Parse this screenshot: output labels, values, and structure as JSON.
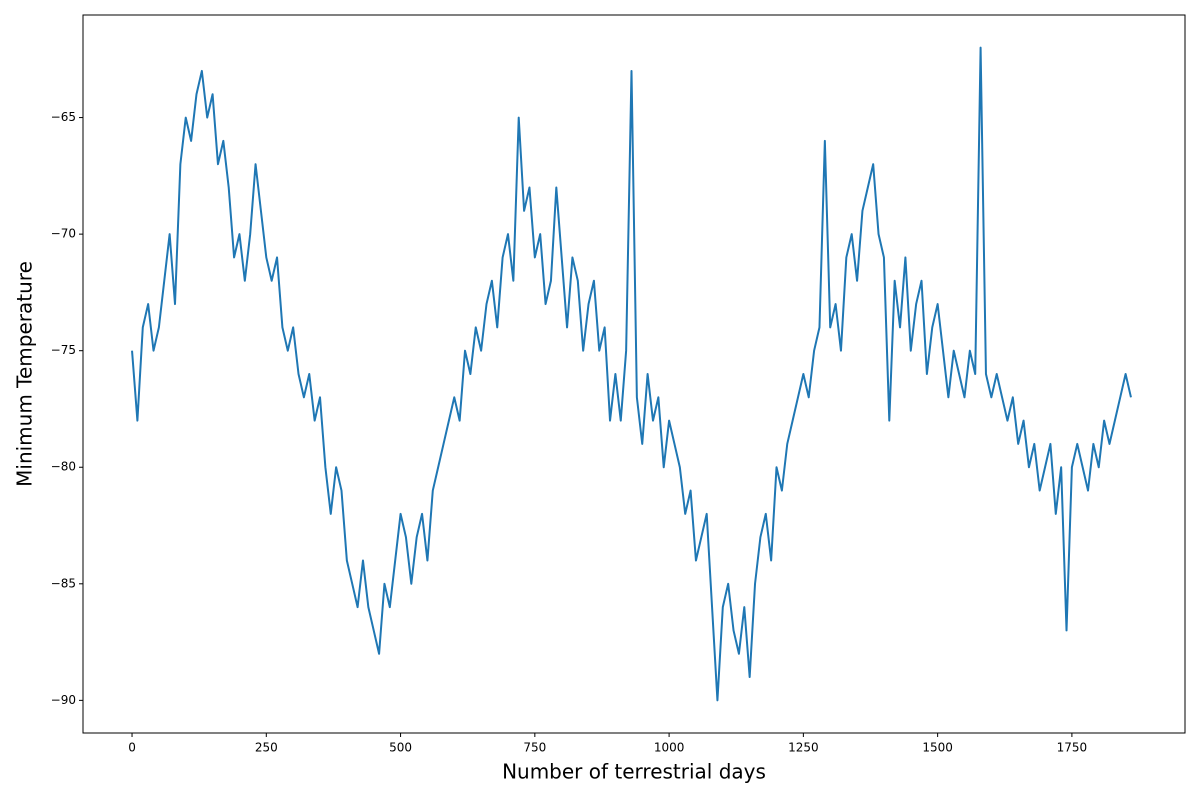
{
  "chart_data": {
    "type": "line",
    "xlabel": "Number of terrestrial days",
    "ylabel": "Minimum Temperature",
    "color": "#1f77b4",
    "xlim": [
      -91.3,
      1960.6
    ],
    "ylim": [
      -91.4,
      -60.6
    ],
    "xticks": [
      0,
      250,
      500,
      750,
      1000,
      1250,
      1500,
      1750
    ],
    "yticks": [
      {
        "value": -65,
        "label": "−65"
      },
      {
        "value": -70,
        "label": "−70"
      },
      {
        "value": -75,
        "label": "−75"
      },
      {
        "value": -80,
        "label": "−80"
      },
      {
        "value": -85,
        "label": "−85"
      },
      {
        "value": -90,
        "label": "−90"
      }
    ],
    "grid": false,
    "x": [
      0,
      10,
      20,
      30,
      40,
      50,
      60,
      70,
      80,
      90,
      100,
      110,
      120,
      130,
      140,
      150,
      160,
      170,
      180,
      190,
      200,
      210,
      220,
      230,
      240,
      250,
      260,
      270,
      280,
      290,
      300,
      310,
      320,
      330,
      340,
      350,
      360,
      370,
      380,
      390,
      400,
      410,
      420,
      430,
      440,
      450,
      460,
      470,
      480,
      490,
      500,
      510,
      520,
      530,
      540,
      550,
      560,
      570,
      580,
      590,
      600,
      610,
      620,
      630,
      640,
      650,
      660,
      670,
      680,
      690,
      700,
      710,
      720,
      730,
      740,
      750,
      760,
      770,
      780,
      790,
      800,
      810,
      820,
      830,
      840,
      850,
      860,
      870,
      880,
      890,
      900,
      910,
      920,
      930,
      940,
      950,
      960,
      970,
      980,
      990,
      1000,
      1010,
      1020,
      1030,
      1040,
      1050,
      1060,
      1070,
      1080,
      1090,
      1100,
      1110,
      1120,
      1130,
      1140,
      1150,
      1160,
      1170,
      1180,
      1190,
      1200,
      1210,
      1220,
      1230,
      1240,
      1250,
      1260,
      1270,
      1280,
      1290,
      1300,
      1310,
      1320,
      1330,
      1340,
      1350,
      1360,
      1370,
      1380,
      1390,
      1400,
      1410,
      1420,
      1430,
      1440,
      1450,
      1460,
      1470,
      1480,
      1490,
      1500,
      1510,
      1520,
      1530,
      1540,
      1550,
      1560,
      1570,
      1580,
      1590,
      1600,
      1610,
      1620,
      1630,
      1640,
      1650,
      1660,
      1670,
      1680,
      1690,
      1700,
      1710,
      1720,
      1730,
      1740,
      1750,
      1760,
      1770,
      1780,
      1790,
      1800,
      1810,
      1820,
      1830,
      1840,
      1850,
      1860
    ],
    "values": [
      -75,
      -78,
      -74,
      -73,
      -75,
      -74,
      -72,
      -70,
      -73,
      -67,
      -65,
      -66,
      -64,
      -63,
      -65,
      -64,
      -67,
      -66,
      -68,
      -71,
      -70,
      -72,
      -70,
      -67,
      -69,
      -71,
      -72,
      -71,
      -74,
      -75,
      -74,
      -76,
      -77,
      -76,
      -78,
      -77,
      -80,
      -82,
      -80,
      -81,
      -84,
      -85,
      -86,
      -84,
      -86,
      -87,
      -88,
      -85,
      -86,
      -84,
      -82,
      -83,
      -85,
      -83,
      -82,
      -84,
      -81,
      -80,
      -79,
      -78,
      -77,
      -78,
      -75,
      -76,
      -74,
      -75,
      -73,
      -72,
      -74,
      -71,
      -70,
      -72,
      -65,
      -69,
      -68,
      -71,
      -70,
      -73,
      -72,
      -68,
      -71,
      -74,
      -71,
      -72,
      -75,
      -73,
      -72,
      -75,
      -74,
      -78,
      -76,
      -78,
      -75,
      -63,
      -77,
      -79,
      -76,
      -78,
      -77,
      -80,
      -78,
      -79,
      -80,
      -82,
      -81,
      -84,
      -83,
      -82,
      -86,
      -90,
      -86,
      -85,
      -87,
      -88,
      -86,
      -89,
      -85,
      -83,
      -82,
      -84,
      -80,
      -81,
      -79,
      -78,
      -77,
      -76,
      -77,
      -75,
      -74,
      -66,
      -74,
      -73,
      -75,
      -71,
      -70,
      -72,
      -69,
      -68,
      -67,
      -70,
      -71,
      -78,
      -72,
      -74,
      -71,
      -75,
      -73,
      -72,
      -76,
      -74,
      -73,
      -75,
      -77,
      -75,
      -76,
      -77,
      -75,
      -76,
      -62,
      -76,
      -77,
      -76,
      -77,
      -78,
      -77,
      -79,
      -78,
      -80,
      -79,
      -81,
      -80,
      -79,
      -82,
      -80,
      -87,
      -80,
      -79,
      -80,
      -81,
      -79,
      -80,
      -78,
      -79,
      -78,
      -77,
      -76,
      -77
    ]
  }
}
